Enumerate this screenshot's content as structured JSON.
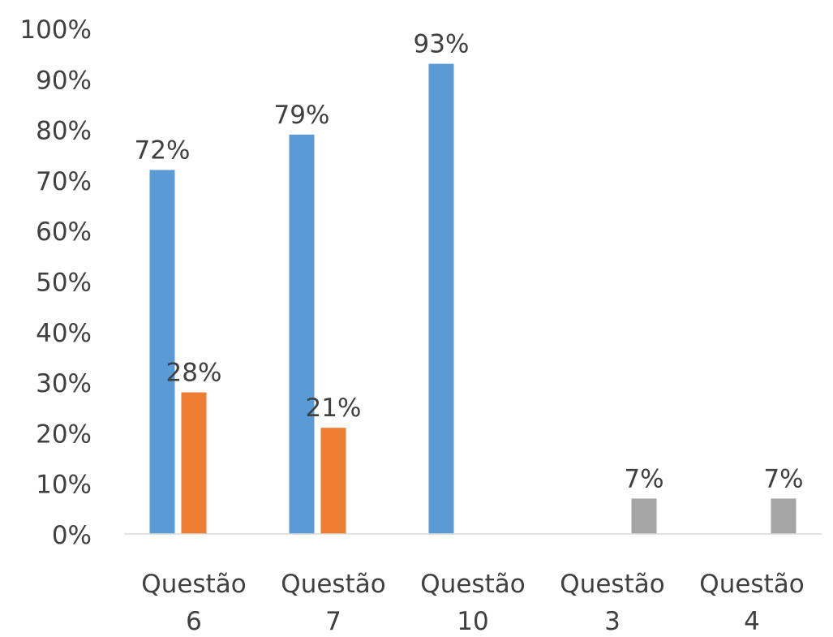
{
  "chart_data": {
    "type": "bar",
    "title": "",
    "xlabel": "",
    "ylabel": "",
    "ylim": [
      0,
      100
    ],
    "y_ticks": [
      "0%",
      "10%",
      "20%",
      "30%",
      "40%",
      "50%",
      "60%",
      "70%",
      "80%",
      "90%",
      "100%"
    ],
    "y_tick_values": [
      0,
      10,
      20,
      30,
      40,
      50,
      60,
      70,
      80,
      90,
      100
    ],
    "grid": false,
    "legend": "none",
    "categories": [
      {
        "line1": "Questão",
        "line2": "6"
      },
      {
        "line1": "Questão",
        "line2": "7"
      },
      {
        "line1": "Questão",
        "line2": "10"
      },
      {
        "line1": "Questão",
        "line2": "3"
      },
      {
        "line1": "Questão",
        "line2": "4"
      }
    ],
    "series": [
      {
        "color": "#5B9BD5",
        "values": [
          72,
          79,
          93,
          null,
          null
        ],
        "labels": [
          "72%",
          "79%",
          "93%",
          "",
          ""
        ]
      },
      {
        "color": "#ED7D31",
        "values": [
          28,
          21,
          null,
          null,
          null
        ],
        "labels": [
          "28%",
          "21%",
          "",
          "",
          ""
        ]
      },
      {
        "color": "#A5A5A5",
        "values": [
          null,
          null,
          null,
          7,
          7
        ],
        "labels": [
          "",
          "",
          "",
          "7%",
          "7%"
        ]
      }
    ]
  }
}
